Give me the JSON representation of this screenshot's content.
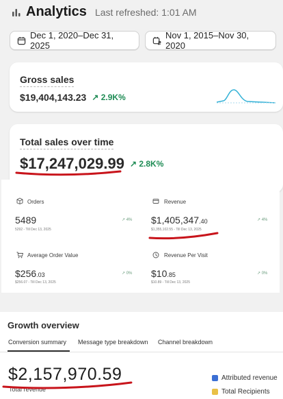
{
  "header": {
    "title": "Analytics",
    "refreshed": "Last refreshed: 1:01 AM"
  },
  "date_range": {
    "primary": "Dec 1, 2020–Dec 31, 2025",
    "comparison": "Nov 1, 2015–Nov 30, 2020"
  },
  "gross_sales": {
    "label": "Gross sales",
    "value": "$19,404,143.23",
    "delta": "2.9K%"
  },
  "total_sales_over_time": {
    "label": "Total sales over time",
    "value": "$17,247,029.99",
    "delta": "2.8K%"
  },
  "metrics": {
    "orders": {
      "label": "Orders",
      "value": "5489",
      "sub": "5292 - Till Dec 13, 2025",
      "delta": "4%"
    },
    "revenue": {
      "label": "Revenue",
      "value_main": "$1,405,347",
      "value_cents": ".40",
      "sub": "$1,355,102.55 - Till Dec 13, 2025",
      "delta": "4%"
    },
    "aov": {
      "label": "Average Order Value",
      "value_main": "$256",
      "value_cents": ".03",
      "sub": "$256.07 - Till Dec 13, 2025",
      "delta": "0%"
    },
    "rpv": {
      "label": "Revenue Per Visit",
      "value_main": "$10",
      "value_cents": ".85",
      "sub": "$10.89 - Till Dec 13, 2025",
      "delta": "0%"
    }
  },
  "growth": {
    "title": "Growth overview",
    "tabs": [
      "Conversion summary",
      "Message type breakdown",
      "Channel breakdown"
    ],
    "total_revenue_value": "$2,157,970.59",
    "total_revenue_label": "Total revenue",
    "legend": [
      {
        "label": "Attributed revenue",
        "color": "#3b6fd4"
      },
      {
        "label": "Total Recipients",
        "color": "#e9c046"
      }
    ]
  },
  "colors": {
    "positive": "#1f8c55",
    "annotation": "#c8141b"
  }
}
